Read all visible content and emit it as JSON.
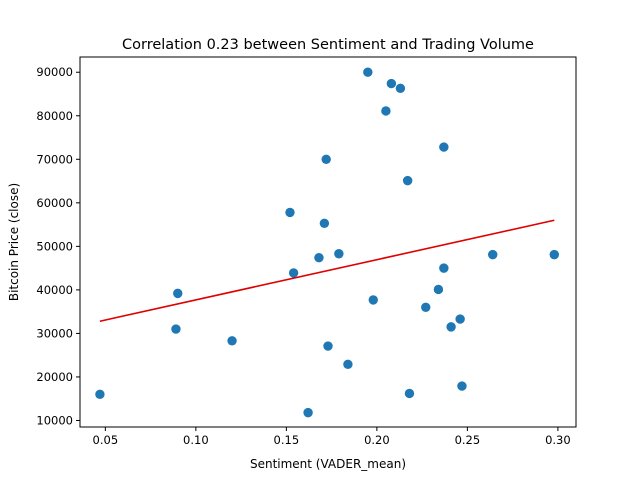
{
  "chart_data": {
    "type": "scatter",
    "title": "Correlation 0.23 between Sentiment and Trading Volume",
    "xlabel": "Sentiment (VADER_mean)",
    "ylabel": "Bitcoin Price (close)",
    "xlim": [
      0.036,
      0.31
    ],
    "ylim": [
      8500,
      93500
    ],
    "x_ticks": [
      0.05,
      0.1,
      0.15,
      0.2,
      0.25,
      0.3
    ],
    "x_tick_labels": [
      "0.05",
      "0.10",
      "0.15",
      "0.20",
      "0.25",
      "0.30"
    ],
    "y_ticks": [
      10000,
      20000,
      30000,
      40000,
      50000,
      60000,
      70000,
      80000,
      90000
    ],
    "y_tick_labels": [
      "10000",
      "20000",
      "30000",
      "40000",
      "50000",
      "60000",
      "70000",
      "80000",
      "90000"
    ],
    "grid": false,
    "marker_color": "#1f77b4",
    "trend_color": "#e00000",
    "points": [
      {
        "x": 0.047,
        "y": 16000
      },
      {
        "x": 0.089,
        "y": 31000
      },
      {
        "x": 0.09,
        "y": 39200
      },
      {
        "x": 0.12,
        "y": 28300
      },
      {
        "x": 0.152,
        "y": 57800
      },
      {
        "x": 0.154,
        "y": 43900
      },
      {
        "x": 0.162,
        "y": 11800
      },
      {
        "x": 0.168,
        "y": 47400
      },
      {
        "x": 0.171,
        "y": 55300
      },
      {
        "x": 0.172,
        "y": 70000
      },
      {
        "x": 0.173,
        "y": 27100
      },
      {
        "x": 0.179,
        "y": 48300
      },
      {
        "x": 0.184,
        "y": 22900
      },
      {
        "x": 0.195,
        "y": 90000
      },
      {
        "x": 0.198,
        "y": 37700
      },
      {
        "x": 0.205,
        "y": 81100
      },
      {
        "x": 0.208,
        "y": 87400
      },
      {
        "x": 0.213,
        "y": 86300
      },
      {
        "x": 0.217,
        "y": 65100
      },
      {
        "x": 0.218,
        "y": 16200
      },
      {
        "x": 0.227,
        "y": 36000
      },
      {
        "x": 0.234,
        "y": 40100
      },
      {
        "x": 0.237,
        "y": 72800
      },
      {
        "x": 0.237,
        "y": 45000
      },
      {
        "x": 0.241,
        "y": 31500
      },
      {
        "x": 0.246,
        "y": 33300
      },
      {
        "x": 0.247,
        "y": 17900
      },
      {
        "x": 0.264,
        "y": 48100
      },
      {
        "x": 0.298,
        "y": 48100
      }
    ],
    "trend_line": {
      "x": [
        0.047,
        0.298
      ],
      "y": [
        32800,
        56000
      ]
    }
  }
}
